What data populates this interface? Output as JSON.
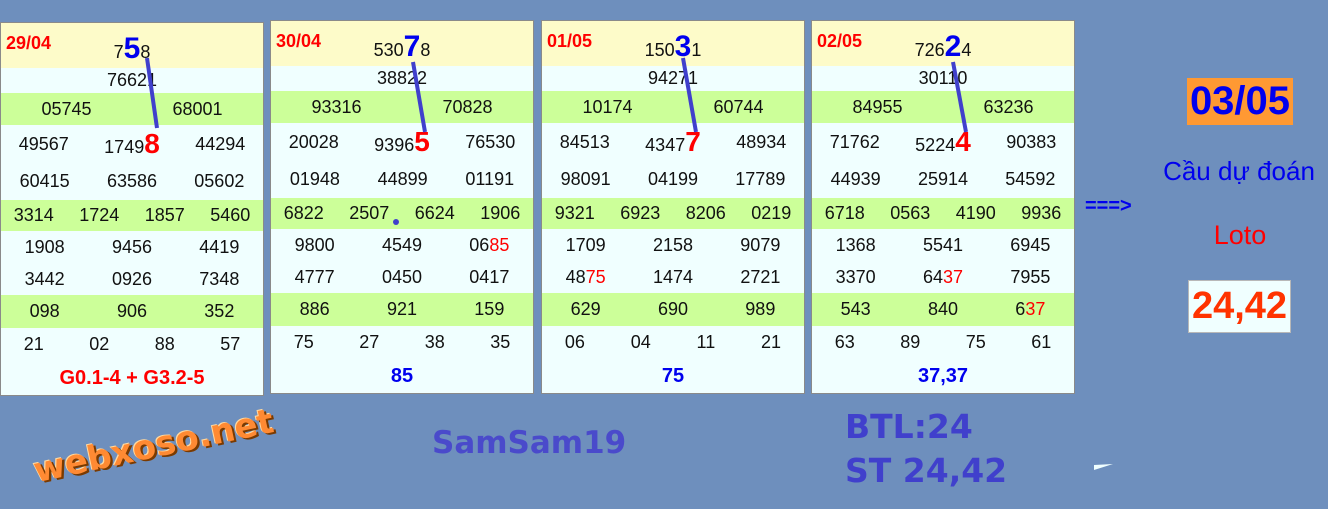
{
  "colors": {
    "background": "#6e8fbd",
    "highlight_blue": "#0000ee",
    "highlight_red": "#ff0000",
    "row_green": "#ccff99",
    "row_yellow": "#fdfbc9",
    "row_light": "#f0ffff",
    "line": "#4040cc"
  },
  "watermark": "webxoso.net",
  "overlay_title": "SamSam19",
  "panels": [
    {
      "date": "29/04",
      "top": {
        "pre": "7",
        "hl": "5",
        "post": "8"
      },
      "rows": [
        [
          "76621"
        ],
        [
          "05745",
          "68001"
        ],
        [
          "49567",
          {
            "pre": "1749",
            "hl": "8",
            "type": "big"
          },
          "44294"
        ],
        [
          "60415",
          "63586",
          "05602"
        ],
        [
          "3314",
          "1724",
          "1857",
          "5460"
        ],
        [
          "1908",
          "9456",
          "4419"
        ],
        [
          "3442",
          "0926",
          "7348"
        ],
        [
          "098",
          "906",
          "352"
        ],
        [
          "21",
          "02",
          "88",
          "57"
        ]
      ],
      "footer": "G0.1-4 + G3.2-5",
      "footer_color": "red"
    },
    {
      "date": "30/04",
      "top": {
        "pre": "530",
        "hl": "7",
        "post": "8"
      },
      "rows": [
        [
          "38822"
        ],
        [
          "93316",
          "70828"
        ],
        [
          "20028",
          {
            "pre": "9396",
            "hl": "5",
            "type": "big"
          },
          "76530"
        ],
        [
          "01948",
          "44899",
          "01191"
        ],
        [
          "6822",
          "2507",
          "6624",
          "1906"
        ],
        [
          "9800",
          "4549",
          {
            "pre": "06",
            "hl": "85",
            "type": "red"
          }
        ],
        [
          "4777",
          "0450",
          "0417"
        ],
        [
          "886",
          "921",
          "159"
        ],
        [
          "75",
          "27",
          "38",
          "35"
        ]
      ],
      "footer": "85",
      "footer_color": "blue"
    },
    {
      "date": "01/05",
      "top": {
        "pre": "150",
        "hl": "3",
        "post": "1"
      },
      "rows": [
        [
          "94271"
        ],
        [
          "10174",
          "60744"
        ],
        [
          "84513",
          {
            "pre": "4347",
            "hl": "7",
            "type": "big"
          },
          "48934"
        ],
        [
          "98091",
          "04199",
          "17789"
        ],
        [
          "9321",
          "6923",
          "8206",
          "0219"
        ],
        [
          "1709",
          "2158",
          "9079"
        ],
        [
          {
            "pre": "48",
            "hl": "75",
            "type": "red"
          },
          "1474",
          "2721"
        ],
        [
          "629",
          "690",
          "989"
        ],
        [
          "06",
          "04",
          "11",
          "21"
        ]
      ],
      "footer": "75",
      "footer_color": "blue"
    },
    {
      "date": "02/05",
      "top": {
        "pre": "726",
        "hl": "2",
        "post": "4"
      },
      "rows": [
        [
          "30110"
        ],
        [
          "84955",
          "63236"
        ],
        [
          "71762",
          {
            "pre": "5224",
            "hl": "4",
            "type": "big"
          },
          "90383"
        ],
        [
          "44939",
          "25914",
          "54592"
        ],
        [
          "6718",
          "0563",
          "4190",
          "9936"
        ],
        [
          "1368",
          "5541",
          "6945"
        ],
        [
          "3370",
          {
            "pre": "64",
            "hl": "37",
            "type": "red"
          },
          "7955"
        ],
        [
          "543",
          "840",
          {
            "pre": "6",
            "hl": "37",
            "type": "red"
          }
        ],
        [
          "63",
          "89",
          "75",
          "61"
        ]
      ],
      "footer": "37,37",
      "footer_color": "blue"
    }
  ],
  "prediction": {
    "date": "03/05",
    "arrow": "===>",
    "label": "Cầu dự đoán",
    "sublabel": "Loto",
    "value": "24,42"
  },
  "summary": {
    "btl": "BTL:24",
    "st": "ST 24,42"
  }
}
